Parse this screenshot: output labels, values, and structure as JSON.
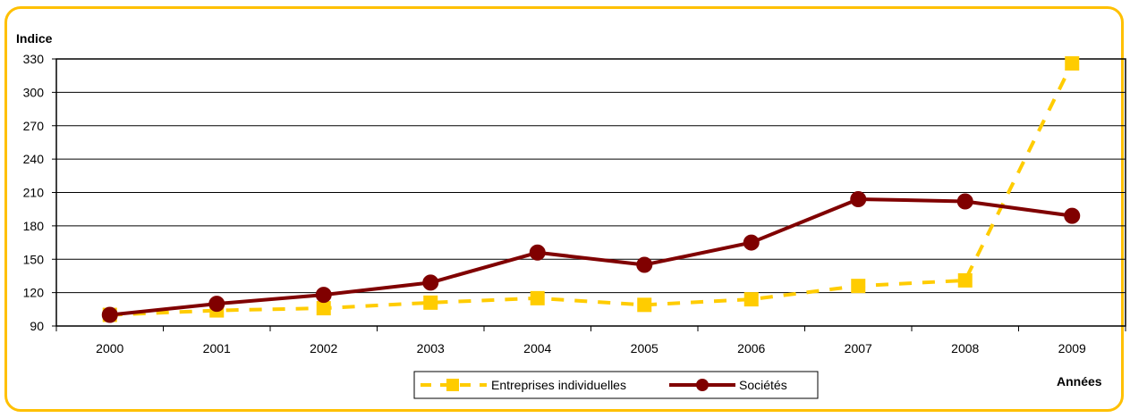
{
  "chart_data": {
    "type": "line",
    "ylabel": "Indice",
    "xlabel": "Années",
    "ylim": [
      90,
      330
    ],
    "yticks": [
      90,
      120,
      150,
      180,
      210,
      240,
      270,
      300,
      330
    ],
    "grid": true,
    "legend_position": "bottom",
    "categories": [
      "2000",
      "2001",
      "2002",
      "2003",
      "2004",
      "2005",
      "2006",
      "2007",
      "2008",
      "2009"
    ],
    "series": [
      {
        "name": "Entreprises individuelles",
        "values": [
          100,
          104,
          106,
          111,
          115,
          109,
          114,
          126,
          131,
          326
        ],
        "color": "#FFCC00",
        "marker": "square",
        "line_style": "dashed"
      },
      {
        "name": "Sociétés",
        "values": [
          100,
          110,
          118,
          129,
          156,
          145,
          165,
          204,
          202,
          189
        ],
        "color": "#800000",
        "marker": "circle",
        "line_style": "solid"
      }
    ]
  }
}
